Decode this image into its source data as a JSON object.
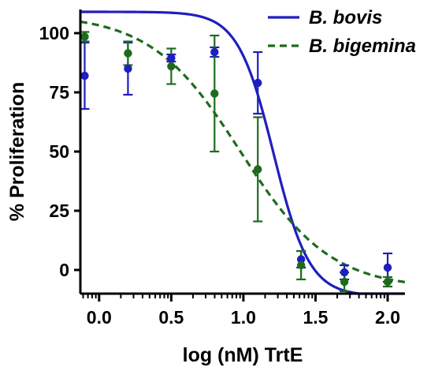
{
  "chart_data": {
    "type": "scatter",
    "xlabel": "log (nM) TrtE",
    "ylabel": "% Proliferation",
    "xlim": [
      -0.13,
      2.12
    ],
    "ylim": [
      -10,
      110
    ],
    "x_ticks": [
      0.0,
      0.5,
      1.0,
      1.5,
      2.0
    ],
    "x_tick_labels": [
      "0.0",
      "0.5",
      "1.0",
      "1.5",
      "2.0"
    ],
    "y_ticks": [
      0,
      25,
      50,
      75,
      100
    ],
    "y_tick_labels": [
      "0",
      "25",
      "50",
      "75",
      "100"
    ],
    "legend_position": "top-right",
    "grid": false,
    "series": [
      {
        "name": "B. bovis",
        "color": "#1f1fbf",
        "line_style": "solid",
        "x": [
          -0.1,
          0.2,
          0.5,
          0.8,
          1.1,
          1.4,
          1.7,
          2.0
        ],
        "y": [
          82,
          85,
          89.5,
          92,
          79,
          4.5,
          -1,
          1
        ],
        "error": [
          14,
          11,
          1.5,
          2,
          13,
          3.5,
          3,
          6
        ],
        "fit": {
          "model": "sigmoid",
          "top": 109,
          "bottom": -11,
          "log_ic50": 1.21,
          "hill": 3.5
        }
      },
      {
        "name": "B. bigemina",
        "color": "#1e6b1e",
        "line_style": "dashed",
        "x": [
          -0.1,
          0.2,
          0.5,
          0.8,
          1.1,
          1.4,
          1.7,
          2.0
        ],
        "y": [
          98.5,
          91.5,
          86,
          74.5,
          42.5,
          2,
          -5,
          -5
        ],
        "error": [
          2,
          5,
          7.5,
          24.5,
          22,
          6,
          4,
          2
        ],
        "fit": {
          "model": "sigmoid",
          "top": 108,
          "bottom": -8,
          "log_ic50": 0.98,
          "hill": 1.4
        }
      }
    ]
  }
}
